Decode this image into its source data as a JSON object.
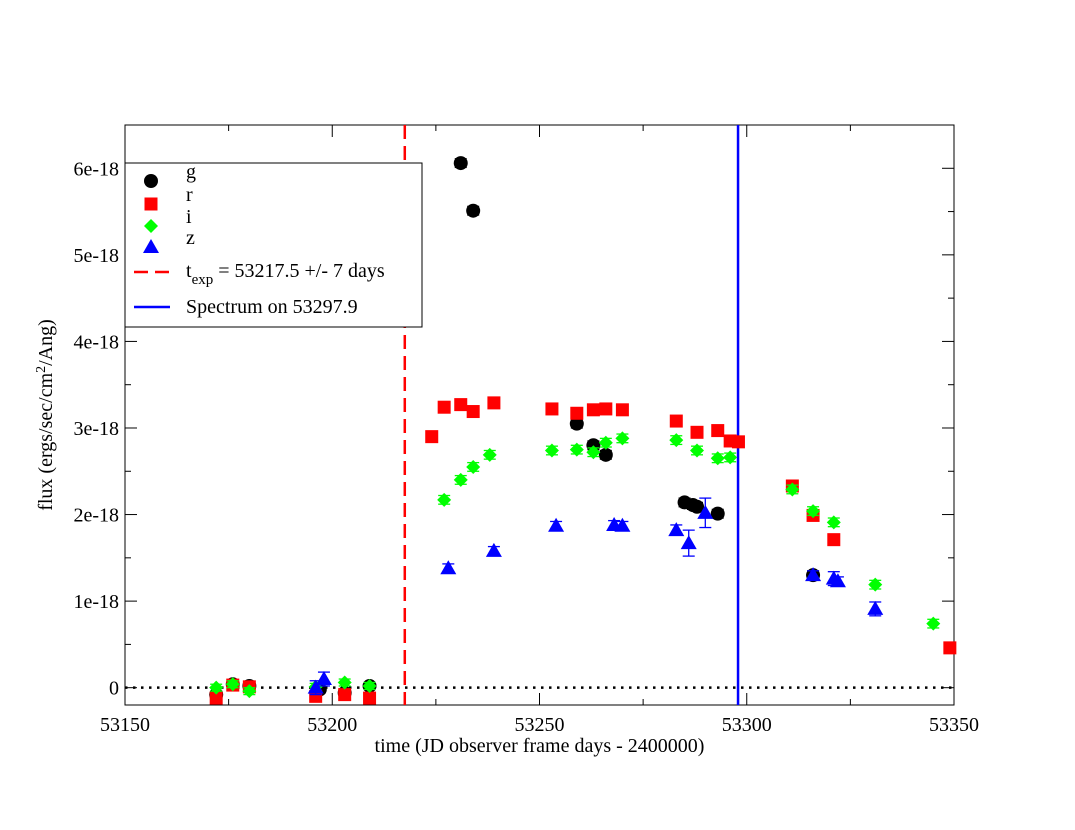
{
  "chart_data": {
    "type": "scatter",
    "xlabel": "time (JD observer frame days - 2400000)",
    "ylabel": "flux (ergs/sec/cm2/Ang)",
    "ylabel_parts": {
      "pre": "flux (ergs/sec/cm",
      "sup": "2",
      "post": "/Ang)"
    },
    "xlim": [
      53150,
      53350
    ],
    "ylim": [
      -2e-19,
      6.5e-18
    ],
    "x_ticks": [
      53150,
      53200,
      53250,
      53300,
      53350
    ],
    "x_tick_labels": [
      "53150",
      "53200",
      "53250",
      "53300",
      "53350"
    ],
    "y_ticks": [
      0,
      1e-18,
      2e-18,
      3e-18,
      4e-18,
      5e-18,
      6e-18
    ],
    "y_tick_labels": [
      "0",
      "1e-18",
      "2e-18",
      "3e-18",
      "4e-18",
      "5e-18",
      "6e-18"
    ],
    "series": [
      {
        "name": "g",
        "color": "#000000",
        "marker": "circle",
        "points": [
          [
            53172,
            -8e-20,
            4e-20
          ],
          [
            53176,
            4e-20,
            4e-20
          ],
          [
            53180,
            2e-20,
            4e-20
          ],
          [
            53197,
            -2e-20,
            4e-20
          ],
          [
            53203,
            -6e-20,
            4e-20
          ],
          [
            53209,
            2e-20,
            4e-20
          ],
          [
            53231,
            6.06e-18,
            5e-20
          ],
          [
            53234,
            5.51e-18,
            5e-20
          ],
          [
            53259,
            3.05e-18,
            5e-20
          ],
          [
            53263,
            2.8e-18,
            5e-20
          ],
          [
            53266,
            2.69e-18,
            5e-20
          ],
          [
            53285,
            2.14e-18,
            5e-20
          ],
          [
            53287,
            2.11e-18,
            5e-20
          ],
          [
            53288,
            2.09e-18,
            5e-20
          ],
          [
            53293,
            2.01e-18,
            5e-20
          ],
          [
            53316,
            1.3e-18,
            5e-20
          ]
        ]
      },
      {
        "name": "r",
        "color": "#ff0000",
        "marker": "square",
        "points": [
          [
            53172,
            -1.2e-19,
            4e-20
          ],
          [
            53176,
            3e-20,
            4e-20
          ],
          [
            53180,
            1e-20,
            4e-20
          ],
          [
            53196,
            -1e-19,
            4e-20
          ],
          [
            53203,
            -8e-20,
            4e-20
          ],
          [
            53209,
            -1.2e-19,
            4e-20
          ],
          [
            53224,
            2.9e-18,
            5e-20
          ],
          [
            53227,
            3.24e-18,
            5e-20
          ],
          [
            53231,
            3.27e-18,
            5e-20
          ],
          [
            53234,
            3.19e-18,
            5e-20
          ],
          [
            53239,
            3.29e-18,
            5e-20
          ],
          [
            53253,
            3.22e-18,
            5e-20
          ],
          [
            53259,
            3.17e-18,
            5e-20
          ],
          [
            53263,
            3.21e-18,
            5e-20
          ],
          [
            53266,
            3.22e-18,
            5e-20
          ],
          [
            53270,
            3.21e-18,
            5e-20
          ],
          [
            53283,
            3.08e-18,
            5e-20
          ],
          [
            53288,
            2.95e-18,
            5e-20
          ],
          [
            53293,
            2.97e-18,
            5e-20
          ],
          [
            53296,
            2.85e-18,
            5e-20
          ],
          [
            53298,
            2.84e-18,
            5e-20
          ],
          [
            53311,
            2.33e-18,
            5e-20
          ],
          [
            53316,
            1.99e-18,
            5e-20
          ],
          [
            53321,
            1.71e-18,
            5e-20
          ],
          [
            53349,
            4.6e-19,
            5e-20
          ]
        ]
      },
      {
        "name": "i",
        "color": "#00ff00",
        "marker": "diamond",
        "points": [
          [
            53172,
            0.0,
            4e-20
          ],
          [
            53176,
            4e-20,
            4e-20
          ],
          [
            53180,
            -4e-20,
            4e-20
          ],
          [
            53196,
            1e-20,
            4e-20
          ],
          [
            53203,
            6e-20,
            4e-20
          ],
          [
            53209,
            2e-20,
            4e-20
          ],
          [
            53227,
            2.17e-18,
            5e-20
          ],
          [
            53231,
            2.4e-18,
            5e-20
          ],
          [
            53234,
            2.55e-18,
            5e-20
          ],
          [
            53238,
            2.69e-18,
            5e-20
          ],
          [
            53253,
            2.74e-18,
            5e-20
          ],
          [
            53259,
            2.75e-18,
            5e-20
          ],
          [
            53263,
            2.72e-18,
            5e-20
          ],
          [
            53266,
            2.83e-18,
            5e-20
          ],
          [
            53270,
            2.88e-18,
            5e-20
          ],
          [
            53283,
            2.86e-18,
            5e-20
          ],
          [
            53288,
            2.74e-18,
            5e-20
          ],
          [
            53293,
            2.65e-18,
            5e-20
          ],
          [
            53296,
            2.66e-18,
            5e-20
          ],
          [
            53311,
            2.29e-18,
            5e-20
          ],
          [
            53316,
            2.04e-18,
            5e-20
          ],
          [
            53321,
            1.91e-18,
            5e-20
          ],
          [
            53331,
            1.19e-18,
            5e-20
          ],
          [
            53345,
            7.4e-19,
            5e-20
          ]
        ]
      },
      {
        "name": "z",
        "color": "#0000ff",
        "marker": "triangle",
        "points": [
          [
            53196,
            0.0,
            8e-20
          ],
          [
            53198,
            1e-19,
            8e-20
          ],
          [
            53228,
            1.38e-18,
            5e-20
          ],
          [
            53239,
            1.58e-18,
            5e-20
          ],
          [
            53254,
            1.87e-18,
            5e-20
          ],
          [
            53268,
            1.88e-18,
            5e-20
          ],
          [
            53270,
            1.87e-18,
            5e-20
          ],
          [
            53283,
            1.82e-18,
            6e-20
          ],
          [
            53286,
            1.67e-18,
            1.5e-19
          ],
          [
            53290,
            2.02e-18,
            1.7e-19
          ],
          [
            53316,
            1.3e-18,
            5e-20
          ],
          [
            53321,
            1.26e-18,
            8e-20
          ],
          [
            53322,
            1.23e-18,
            5e-20
          ],
          [
            53331,
            9.1e-19,
            8e-20
          ]
        ]
      }
    ],
    "vlines": [
      {
        "x": 53217.5,
        "color": "#ff0000",
        "style": "dashed"
      },
      {
        "x": 53297.9,
        "color": "#0000ff",
        "style": "solid"
      }
    ],
    "hline": {
      "y": 0,
      "style": "dotted",
      "color": "#000000"
    },
    "legend": {
      "placement": "top-left",
      "entries": [
        {
          "label": "g"
        },
        {
          "label": "r"
        },
        {
          "label": "i"
        },
        {
          "label": "z"
        },
        {
          "label_pre": "t",
          "label_sub": "exp",
          "label_post": " = 53217.5 +/- 7 days"
        },
        {
          "label": "Spectrum on 53297.9"
        }
      ]
    }
  }
}
